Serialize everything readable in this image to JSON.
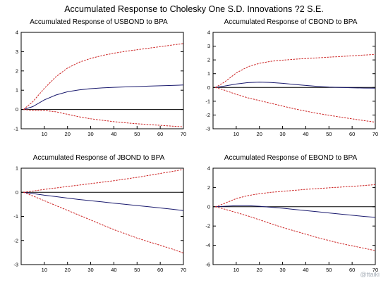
{
  "figure": {
    "title": "Accumulated Response to Cholesky One S.D. Innovations ?2 S.E.",
    "watermark": "@ttaiki",
    "colors": {
      "response": "#1a1a6e",
      "band": "#cc2222",
      "zero": "#000000",
      "frame": "#000000"
    }
  },
  "chart_data": [
    {
      "type": "line",
      "title": "Accumulated Response of USBOND to BPA",
      "xlabel": "",
      "ylabel": "",
      "xlim": [
        0,
        70
      ],
      "ylim": [
        -1,
        4
      ],
      "xticks": [
        10,
        20,
        30,
        40,
        50,
        60,
        70
      ],
      "yticks": [
        -1,
        0,
        1,
        2,
        3,
        4
      ],
      "grid": false,
      "x": [
        1,
        5,
        10,
        15,
        20,
        25,
        30,
        35,
        40,
        45,
        50,
        55,
        60,
        65,
        70
      ],
      "series": [
        {
          "role": "response",
          "style": "solid",
          "color": "#1a1a6e",
          "values": [
            0.0,
            0.15,
            0.5,
            0.75,
            0.92,
            1.02,
            1.08,
            1.12,
            1.15,
            1.17,
            1.19,
            1.21,
            1.23,
            1.25,
            1.27
          ]
        },
        {
          "role": "upper",
          "style": "dashed",
          "color": "#cc2222",
          "values": [
            0.0,
            0.4,
            1.1,
            1.7,
            2.15,
            2.45,
            2.65,
            2.8,
            2.92,
            3.02,
            3.1,
            3.18,
            3.26,
            3.34,
            3.42
          ]
        },
        {
          "role": "lower",
          "style": "dashed",
          "color": "#cc2222",
          "values": [
            0.0,
            -0.05,
            -0.05,
            -0.12,
            -0.25,
            -0.38,
            -0.48,
            -0.56,
            -0.63,
            -0.69,
            -0.74,
            -0.78,
            -0.82,
            -0.86,
            -0.9
          ]
        }
      ]
    },
    {
      "type": "line",
      "title": "Accumulated Response of CBOND to BPA",
      "xlabel": "",
      "ylabel": "",
      "xlim": [
        0,
        70
      ],
      "ylim": [
        -3,
        4
      ],
      "xticks": [
        10,
        20,
        30,
        40,
        50,
        60,
        70
      ],
      "yticks": [
        -3,
        -2,
        -1,
        0,
        1,
        2,
        3,
        4
      ],
      "grid": false,
      "x": [
        1,
        5,
        10,
        15,
        20,
        25,
        30,
        35,
        40,
        45,
        50,
        55,
        60,
        65,
        70
      ],
      "series": [
        {
          "role": "response",
          "style": "solid",
          "color": "#1a1a6e",
          "values": [
            0.0,
            0.1,
            0.25,
            0.35,
            0.38,
            0.36,
            0.3,
            0.22,
            0.15,
            0.08,
            0.03,
            0.0,
            -0.02,
            -0.04,
            -0.05
          ]
        },
        {
          "role": "upper",
          "style": "dashed",
          "color": "#cc2222",
          "values": [
            0.0,
            0.4,
            1.05,
            1.5,
            1.75,
            1.9,
            1.98,
            2.05,
            2.1,
            2.15,
            2.2,
            2.25,
            2.3,
            2.35,
            2.4
          ]
        },
        {
          "role": "lower",
          "style": "dashed",
          "color": "#cc2222",
          "values": [
            0.0,
            -0.2,
            -0.5,
            -0.75,
            -0.95,
            -1.15,
            -1.35,
            -1.55,
            -1.72,
            -1.88,
            -2.02,
            -2.15,
            -2.28,
            -2.4,
            -2.52
          ]
        }
      ]
    },
    {
      "type": "line",
      "title": "Accumulated Response of JBOND to BPA",
      "xlabel": "",
      "ylabel": "",
      "xlim": [
        0,
        70
      ],
      "ylim": [
        -3,
        1
      ],
      "xticks": [
        10,
        20,
        30,
        40,
        50,
        60,
        70
      ],
      "yticks": [
        -3,
        -2,
        -1,
        0,
        1
      ],
      "grid": false,
      "x": [
        1,
        5,
        10,
        15,
        20,
        25,
        30,
        35,
        40,
        45,
        50,
        55,
        60,
        65,
        70
      ],
      "series": [
        {
          "role": "response",
          "style": "solid",
          "color": "#1a1a6e",
          "values": [
            0.0,
            -0.05,
            -0.12,
            -0.18,
            -0.24,
            -0.3,
            -0.35,
            -0.4,
            -0.45,
            -0.5,
            -0.55,
            -0.6,
            -0.65,
            -0.7,
            -0.76
          ]
        },
        {
          "role": "upper",
          "style": "dashed",
          "color": "#cc2222",
          "values": [
            0.0,
            0.05,
            0.12,
            0.18,
            0.24,
            0.3,
            0.36,
            0.42,
            0.48,
            0.55,
            0.62,
            0.7,
            0.78,
            0.86,
            0.95
          ]
        },
        {
          "role": "lower",
          "style": "dashed",
          "color": "#cc2222",
          "values": [
            0.0,
            -0.15,
            -0.35,
            -0.55,
            -0.75,
            -0.95,
            -1.15,
            -1.35,
            -1.55,
            -1.72,
            -1.9,
            -2.05,
            -2.2,
            -2.35,
            -2.52
          ]
        }
      ]
    },
    {
      "type": "line",
      "title": "Accumulated Response of EBOND to BPA",
      "xlabel": "",
      "ylabel": "",
      "xlim": [
        0,
        70
      ],
      "ylim": [
        -6,
        4
      ],
      "xticks": [
        10,
        20,
        30,
        40,
        50,
        60,
        70
      ],
      "yticks": [
        -6,
        -4,
        -2,
        0,
        2,
        4
      ],
      "grid": false,
      "x": [
        1,
        5,
        10,
        15,
        20,
        25,
        30,
        35,
        40,
        45,
        50,
        55,
        60,
        65,
        70
      ],
      "series": [
        {
          "role": "response",
          "style": "solid",
          "color": "#1a1a6e",
          "values": [
            0.0,
            0.05,
            0.12,
            0.12,
            0.05,
            -0.05,
            -0.15,
            -0.28,
            -0.4,
            -0.52,
            -0.64,
            -0.76,
            -0.88,
            -1.0,
            -1.1
          ]
        },
        {
          "role": "upper",
          "style": "dashed",
          "color": "#cc2222",
          "values": [
            0.0,
            0.35,
            0.85,
            1.15,
            1.35,
            1.5,
            1.6,
            1.7,
            1.8,
            1.88,
            1.96,
            2.04,
            2.12,
            2.2,
            2.3
          ]
        },
        {
          "role": "lower",
          "style": "dashed",
          "color": "#cc2222",
          "values": [
            0.0,
            -0.25,
            -0.6,
            -0.95,
            -1.35,
            -1.75,
            -2.15,
            -2.5,
            -2.85,
            -3.2,
            -3.5,
            -3.8,
            -4.05,
            -4.3,
            -4.55
          ]
        }
      ]
    }
  ]
}
